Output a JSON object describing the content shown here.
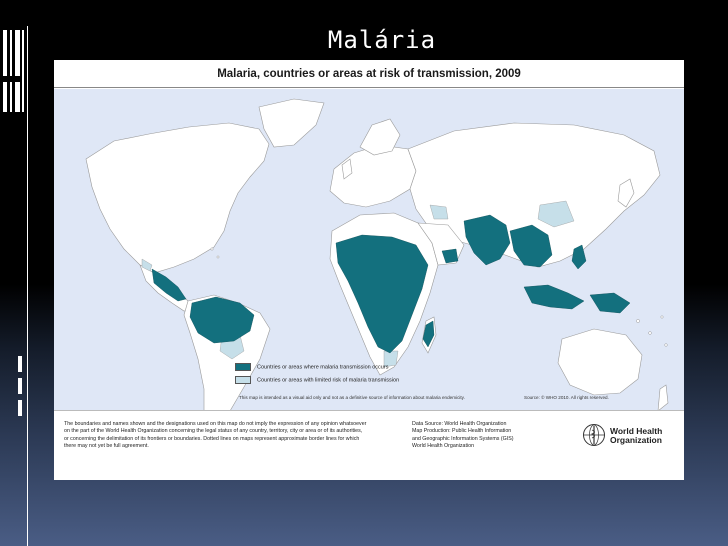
{
  "slide": {
    "title": "Malária"
  },
  "map": {
    "title": "Malaria, countries or areas at risk of transmission, 2009",
    "colors": {
      "ocean": "#dfe7f6",
      "land": "#ffffff",
      "risk": "#13707e",
      "limited": "#c6dfe9",
      "border": "#9a9a9a"
    },
    "legend": [
      {
        "label": "Countries or areas where malaria transmission occurs",
        "color": "#13707e"
      },
      {
        "label": "Countries or areas with limited risk of malaria transmission",
        "color": "#c6dfe9"
      }
    ],
    "map_note": "This map is intended as a visual aid only and not as a definitive source of information about malaria endemicity.",
    "source_note": "Source: © WHO 2010. All rights reserved."
  },
  "footer": {
    "disclaimer_lines": [
      "The boundaries and names shown and the designations used on this map do not imply the expression of any opinion whatsoever",
      "on the part of the World Health Organization concerning the legal status of any country, territory, city or area or of its authorities,",
      "or concerning the delimitation of its frontiers or boundaries. Dotted lines on maps represent approximate border lines for which",
      "there may not yet be full agreement."
    ],
    "source_lines": [
      "Data Source: World Health Organization",
      "Map Production: Public Health Information",
      "and Geographic Information Systems (GIS)",
      "World Health Organization"
    ],
    "who_name_lines": [
      "World Health",
      "Organization"
    ]
  }
}
